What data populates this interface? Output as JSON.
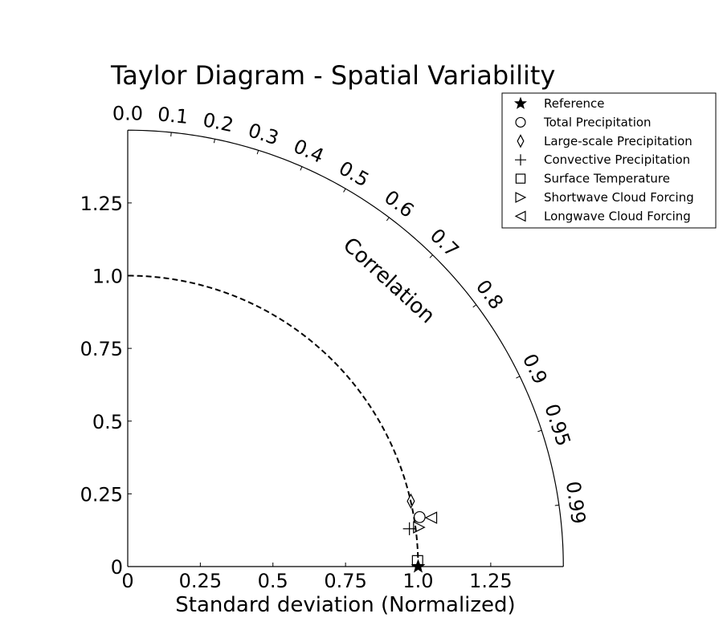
{
  "chart_data": {
    "type": "scatter",
    "subtype": "taylor-diagram",
    "title": "Taylor Diagram - Spatial Variability",
    "xlabel": "Standard deviation (Normalized)",
    "ylabel": "",
    "corr_label": "Correlation",
    "std_range": [
      0,
      1.5
    ],
    "std_ticks": [
      0,
      0.25,
      0.5,
      0.75,
      1.0,
      1.25
    ],
    "std_tick_labels": [
      "0",
      "0.25",
      "0.5",
      "0.75",
      "1.0",
      "1.25"
    ],
    "corr_ticks": [
      0.0,
      0.1,
      0.2,
      0.3,
      0.4,
      0.5,
      0.6,
      0.7,
      0.8,
      0.9,
      0.95,
      0.99
    ],
    "corr_tick_labels": [
      "0.0",
      "0.1",
      "0.2",
      "0.3",
      "0.4",
      "0.5",
      "0.6",
      "0.7",
      "0.8",
      "0.9",
      "0.95",
      "0.99"
    ],
    "reference_std": 1.0,
    "legend_position": "top-right",
    "series": [
      {
        "name": "Reference",
        "marker": "star",
        "x": 1.0,
        "y": 0.0
      },
      {
        "name": "Total Precipitation",
        "marker": "circle",
        "x": 1.005,
        "y": 0.17
      },
      {
        "name": "Large-scale Precipitation",
        "marker": "diamond",
        "x": 0.975,
        "y": 0.225
      },
      {
        "name": "Convective Precipitation",
        "marker": "plus",
        "x": 0.97,
        "y": 0.13
      },
      {
        "name": "Surface Temperature",
        "marker": "square",
        "x": 0.998,
        "y": 0.02
      },
      {
        "name": "Shortwave Cloud Forcing",
        "marker": "triangle-right",
        "x": 1.003,
        "y": 0.135
      },
      {
        "name": "Longwave Cloud Forcing",
        "marker": "triangle-left",
        "x": 1.045,
        "y": 0.168
      }
    ]
  }
}
